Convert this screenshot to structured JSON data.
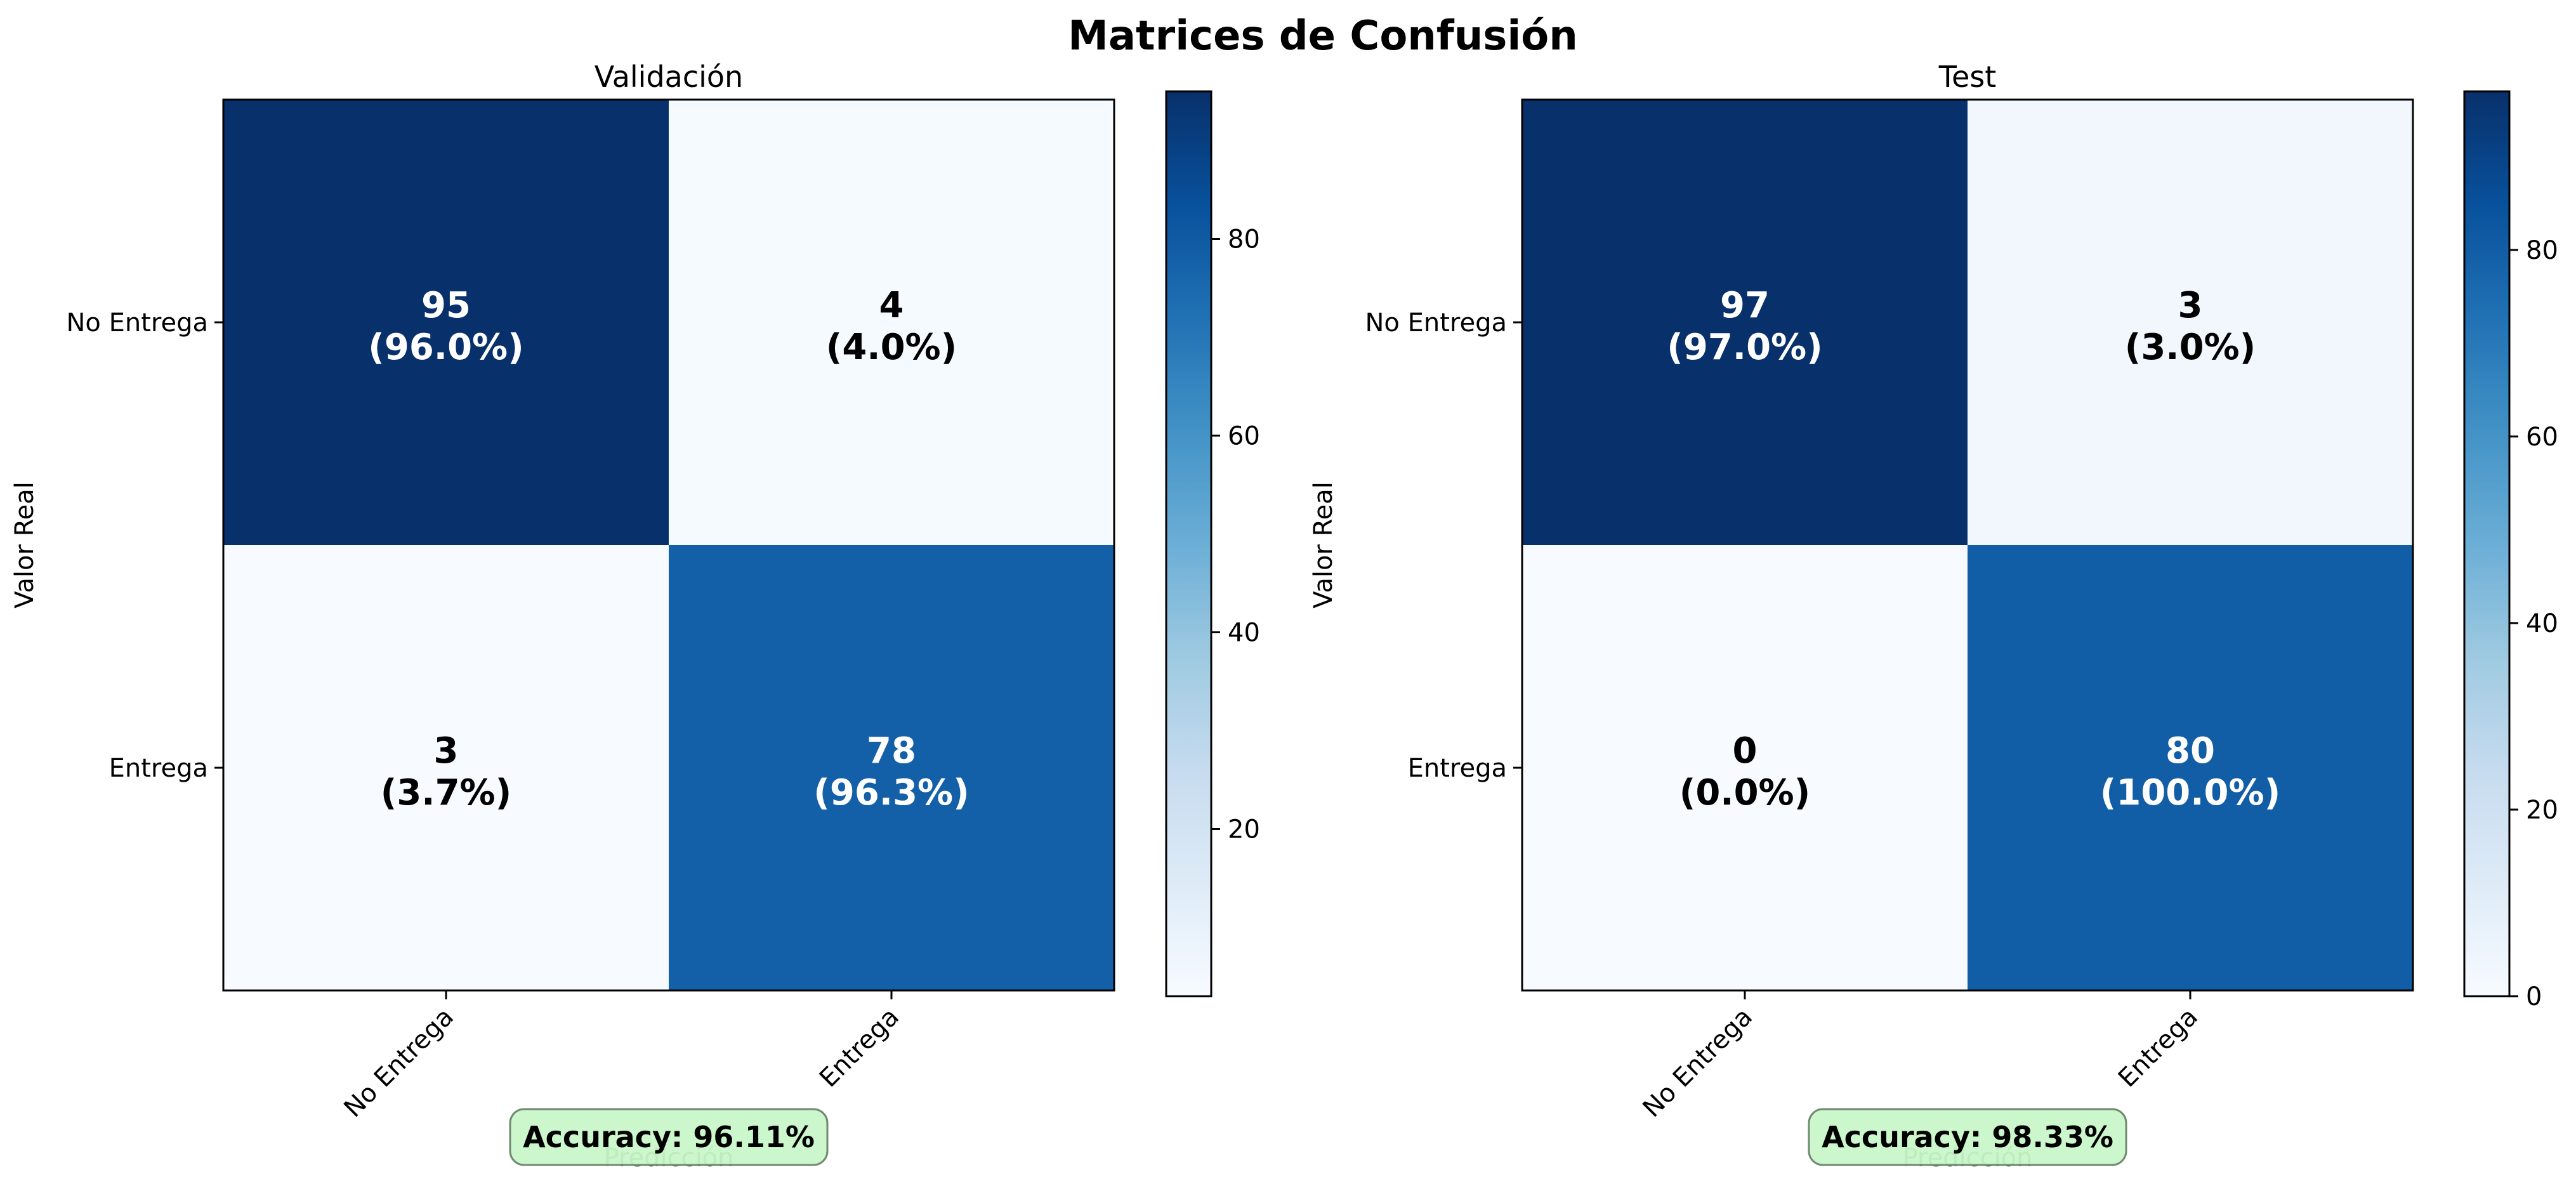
{
  "figure": {
    "title": "Matrices de Confusión"
  },
  "chart_data": [
    {
      "type": "heatmap",
      "title": "Validación",
      "xlabel": "Predicción",
      "ylabel": "Valor Real",
      "row_labels": [
        "No Entrega",
        "Entrega"
      ],
      "col_labels": [
        "No Entrega",
        "Entrega"
      ],
      "values": [
        [
          95,
          4
        ],
        [
          3,
          78
        ]
      ],
      "percent_labels": [
        [
          "(96.0%)",
          "(4.0%)"
        ],
        [
          "(3.7%)",
          "(96.3%)"
        ]
      ],
      "colormap": "Blues",
      "colorbar": {
        "vmin": 3,
        "vmax": 95,
        "ticks": [
          20,
          40,
          60,
          80
        ]
      },
      "accuracy_label": "Accuracy: 96.11%"
    },
    {
      "type": "heatmap",
      "title": "Test",
      "xlabel": "Predicción",
      "ylabel": "Valor Real",
      "row_labels": [
        "No Entrega",
        "Entrega"
      ],
      "col_labels": [
        "No Entrega",
        "Entrega"
      ],
      "values": [
        [
          97,
          3
        ],
        [
          0,
          80
        ]
      ],
      "percent_labels": [
        [
          "(97.0%)",
          "(3.0%)"
        ],
        [
          "(0.0%)",
          "(100.0%)"
        ]
      ],
      "colormap": "Blues",
      "colorbar": {
        "vmin": 0,
        "vmax": 97,
        "ticks": [
          0,
          20,
          40,
          60,
          80
        ]
      },
      "accuracy_label": "Accuracy: 98.33%"
    }
  ],
  "colors": {
    "accuracy_box_fill": "#c8f5c8",
    "accuracy_box_edge": "#6f8a6f",
    "xlabel_color": "#3d7a3d"
  }
}
